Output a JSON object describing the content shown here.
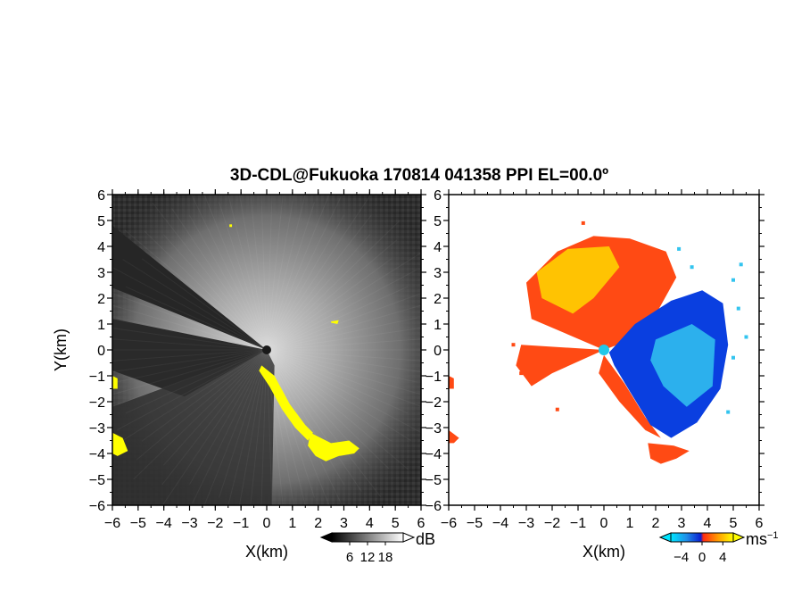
{
  "title": "3D-CDL@Fukuoka 170814 041358 PPI EL=00.0º",
  "colors": {
    "panel_background_left": "#2f2f2f",
    "highlight": "#ffff00",
    "velocity_negative": "#0a3fe0",
    "velocity_positive": "#ff4a14",
    "velocity_light_positive": "#ffd000",
    "velocity_light_negative": "#33c4ef",
    "center_marker": "#22c8e8"
  },
  "chart_data": [
    {
      "name": "left-panel",
      "type": "heatmap",
      "description_label": "",
      "xlabel": "X(km)",
      "ylabel": "Y(km)",
      "xlim": [
        -6,
        6
      ],
      "ylim": [
        -6,
        6
      ],
      "x_ticks": [
        "-6",
        "-5",
        "-4",
        "-3",
        "-2",
        "-1",
        "0",
        "1",
        "2",
        "3",
        "4",
        "5",
        "6"
      ],
      "y_ticks": [
        "-6",
        "-5",
        "-4",
        "-3",
        "-2",
        "-1",
        "0",
        "1",
        "2",
        "3",
        "4",
        "5",
        "6"
      ],
      "colorbar": {
        "unit": "dB",
        "ticks": [
          "6",
          "12",
          "18"
        ],
        "min": 0,
        "max": 24
      },
      "highlight_regions": [
        {
          "points": [
            [
              -0.2,
              -0.6
            ],
            [
              0.3,
              -1.0
            ],
            [
              0.9,
              -2.1
            ],
            [
              1.5,
              -2.9
            ],
            [
              1.8,
              -3.2
            ],
            [
              1.6,
              -3.5
            ],
            [
              1.1,
              -3.0
            ],
            [
              0.6,
              -2.3
            ],
            [
              0.1,
              -1.4
            ],
            [
              -0.3,
              -0.8
            ]
          ]
        },
        {
          "points": [
            [
              1.7,
              -3.2
            ],
            [
              2.5,
              -3.6
            ],
            [
              3.2,
              -3.5
            ],
            [
              3.6,
              -3.8
            ],
            [
              3.4,
              -4.0
            ],
            [
              2.8,
              -4.1
            ],
            [
              2.3,
              -4.3
            ],
            [
              1.9,
              -4.1
            ],
            [
              1.6,
              -3.7
            ]
          ]
        },
        {
          "points": [
            [
              -6.0,
              -3.2
            ],
            [
              -5.6,
              -3.4
            ],
            [
              -5.4,
              -3.9
            ],
            [
              -5.8,
              -4.1
            ],
            [
              -6.0,
              -4.0
            ]
          ]
        },
        {
          "points": [
            [
              -6.0,
              -1.0
            ],
            [
              -5.8,
              -1.1
            ],
            [
              -5.8,
              -1.5
            ],
            [
              -6.0,
              -1.5
            ]
          ]
        },
        {
          "points": [
            [
              2.5,
              1.1
            ],
            [
              2.8,
              1.15
            ],
            [
              2.75,
              1.0
            ],
            [
              2.5,
              1.05
            ]
          ]
        },
        {
          "points": [
            [
              -1.45,
              4.85
            ],
            [
              -1.35,
              4.85
            ],
            [
              -1.35,
              4.75
            ],
            [
              -1.45,
              4.75
            ]
          ]
        }
      ]
    },
    {
      "name": "right-panel",
      "type": "heatmap",
      "xlabel": "X(km)",
      "ylabel": "",
      "xlim": [
        -6,
        6
      ],
      "ylim": [
        -6,
        6
      ],
      "x_ticks": [
        "-6",
        "-5",
        "-4",
        "-3",
        "-2",
        "-1",
        "0",
        "1",
        "2",
        "3",
        "4",
        "5",
        "6"
      ],
      "y_ticks": [
        "-6",
        "-5",
        "-4",
        "-3",
        "-2",
        "-1",
        "0",
        "1",
        "2",
        "3",
        "4",
        "5",
        "6"
      ],
      "colorbar": {
        "unit": "ms",
        "unit_superscript": "−1",
        "ticks": [
          "-4",
          "0",
          "4"
        ],
        "min": -6,
        "max": 6
      },
      "velocity_regions": [
        {
          "sign": "positive",
          "points": [
            [
              0,
              0
            ],
            [
              -2.8,
              1.2
            ],
            [
              -3.0,
              2.6
            ],
            [
              -1.8,
              3.8
            ],
            [
              -0.4,
              4.4
            ],
            [
              1.0,
              4.3
            ],
            [
              2.4,
              3.8
            ],
            [
              2.8,
              2.8
            ],
            [
              1.8,
              1.0
            ],
            [
              0.8,
              0.3
            ]
          ]
        },
        {
          "sign": "positive",
          "points": [
            [
              0,
              0
            ],
            [
              -3.2,
              0.2
            ],
            [
              -3.4,
              -0.6
            ],
            [
              -2.8,
              -1.4
            ],
            [
              -2.0,
              -0.9
            ]
          ]
        },
        {
          "sign": "positive",
          "points": [
            [
              0,
              -0.2
            ],
            [
              0.8,
              -1.3
            ],
            [
              1.6,
              -2.6
            ],
            [
              2.2,
              -3.4
            ],
            [
              1.6,
              -3.1
            ],
            [
              0.6,
              -2.0
            ],
            [
              -0.2,
              -0.9
            ]
          ]
        },
        {
          "sign": "positive",
          "points": [
            [
              1.7,
              -3.6
            ],
            [
              2.7,
              -3.7
            ],
            [
              3.3,
              -3.9
            ],
            [
              2.8,
              -4.2
            ],
            [
              2.2,
              -4.4
            ],
            [
              1.8,
              -4.2
            ]
          ]
        },
        {
          "sign": "positive",
          "points": [
            [
              -6.0,
              -3.1
            ],
            [
              -5.6,
              -3.4
            ],
            [
              -5.8,
              -3.6
            ],
            [
              -6.0,
              -3.6
            ]
          ]
        },
        {
          "sign": "positive",
          "points": [
            [
              -6.0,
              -1.0
            ],
            [
              -5.8,
              -1.1
            ],
            [
              -5.8,
              -1.5
            ],
            [
              -6.0,
              -1.5
            ]
          ]
        },
        {
          "sign": "negative",
          "points": [
            [
              0.2,
              -0.1
            ],
            [
              1.2,
              1.0
            ],
            [
              2.6,
              1.9
            ],
            [
              3.8,
              2.3
            ],
            [
              4.6,
              1.8
            ],
            [
              4.8,
              0.2
            ],
            [
              4.5,
              -1.5
            ],
            [
              3.6,
              -2.8
            ],
            [
              2.6,
              -3.4
            ],
            [
              1.8,
              -2.9
            ],
            [
              1.0,
              -1.6
            ],
            [
              0.4,
              -0.6
            ]
          ]
        }
      ],
      "center_marker": {
        "x": 0,
        "y": 0
      }
    }
  ]
}
